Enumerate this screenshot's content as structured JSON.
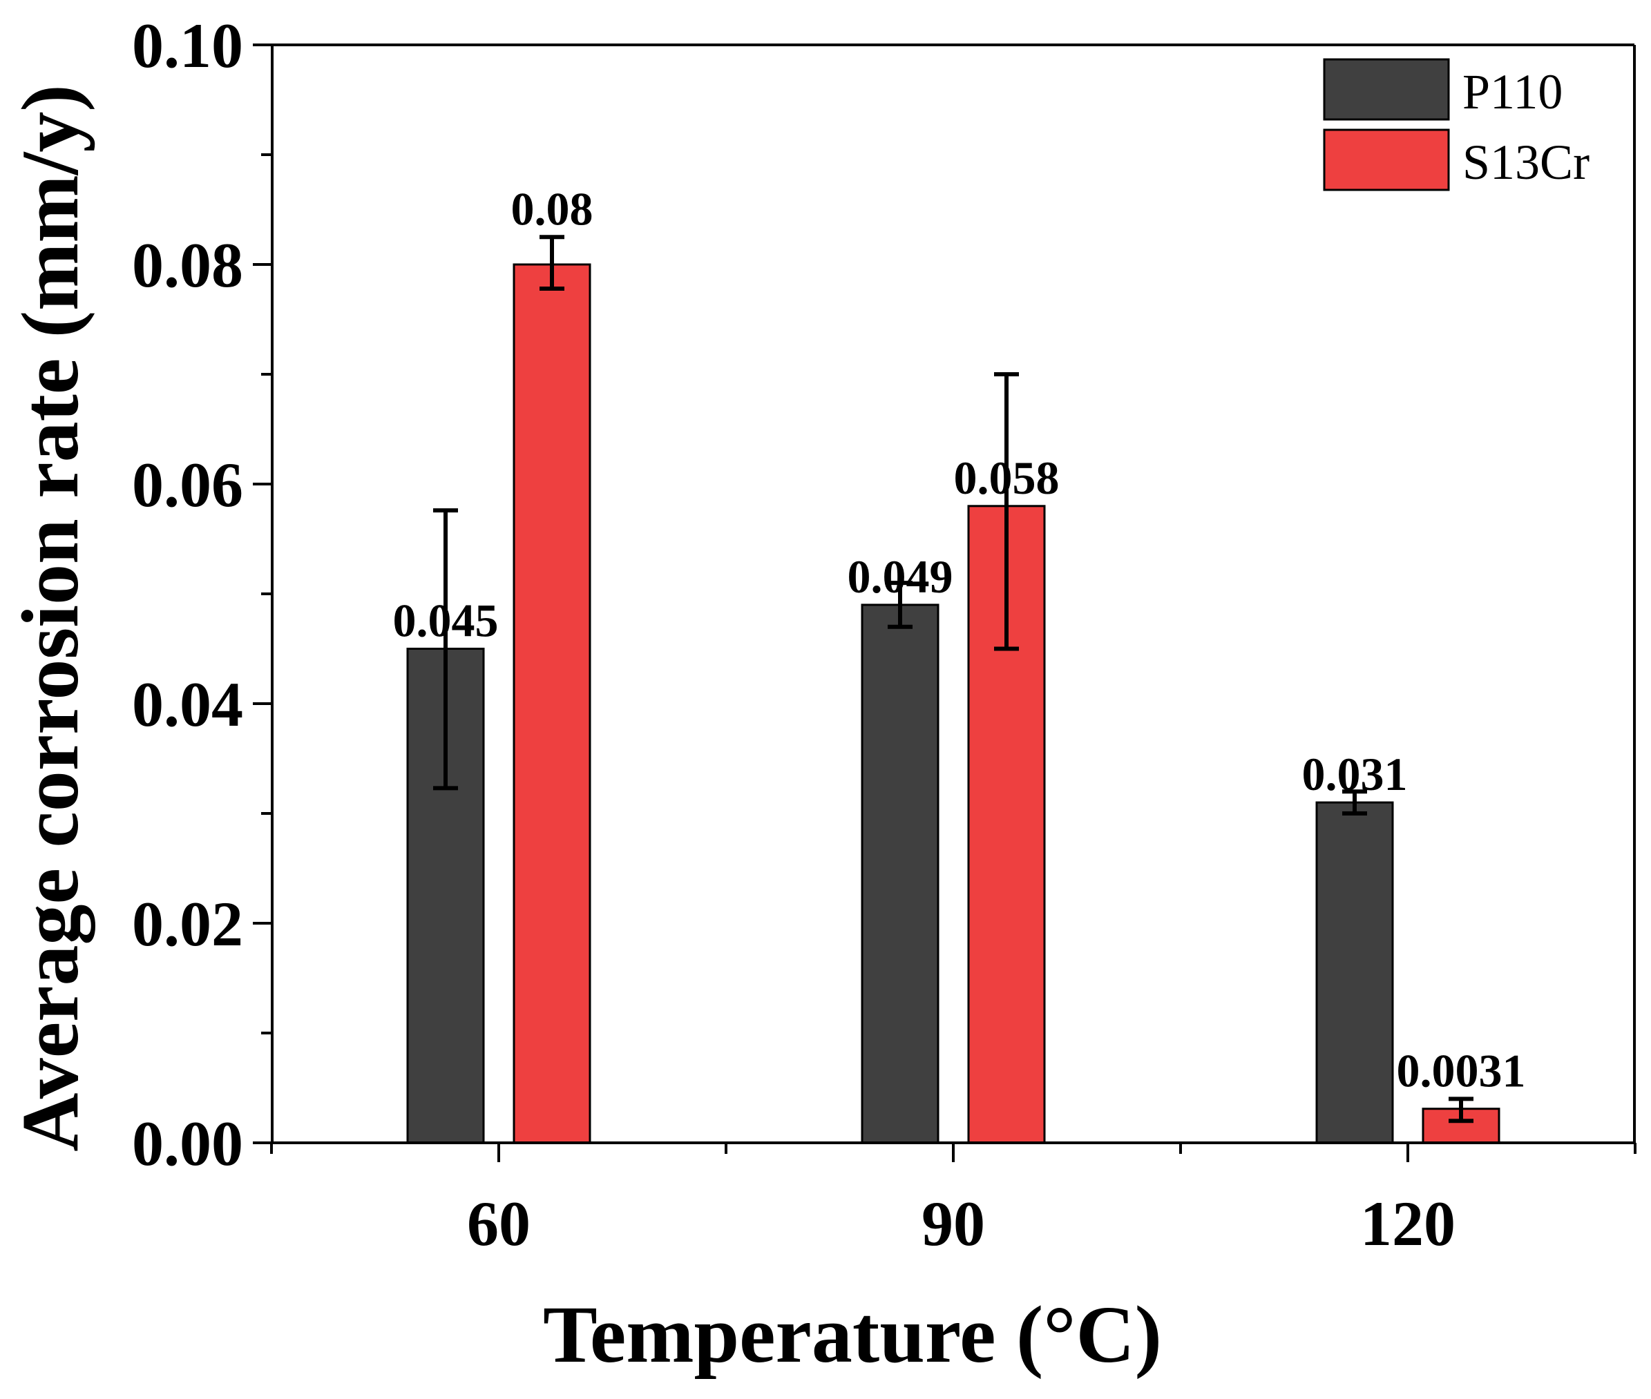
{
  "chart_data": {
    "type": "bar",
    "title": "",
    "xlabel": "Temperature (°C)",
    "ylabel": "Average corrosion rate (mm/y)",
    "categories": [
      "60",
      "90",
      "120"
    ],
    "ylim": [
      0,
      0.1
    ],
    "yticks": [
      "0.00",
      "0.02",
      "0.04",
      "0.06",
      "0.08",
      "0.10"
    ],
    "ytick_values": [
      0,
      0.02,
      0.04,
      0.06,
      0.08,
      0.1
    ],
    "legend_position": "top-right",
    "grid": false,
    "series": [
      {
        "name": "P110",
        "color": "#404040",
        "values": [
          0.045,
          0.049,
          0.031
        ],
        "labels": [
          "0.045",
          "0.049",
          "0.031"
        ],
        "err_low": [
          0.0323,
          0.047,
          0.03
        ],
        "err_high": [
          0.0576,
          0.051,
          0.032
        ]
      },
      {
        "name": "S13Cr",
        "color": "#ee4040",
        "values": [
          0.08,
          0.058,
          0.0031
        ],
        "labels": [
          "0.08",
          "0.058",
          "0.0031"
        ],
        "err_low": [
          0.0778,
          0.045,
          0.002
        ],
        "err_high": [
          0.0825,
          0.07,
          0.004
        ]
      }
    ]
  }
}
